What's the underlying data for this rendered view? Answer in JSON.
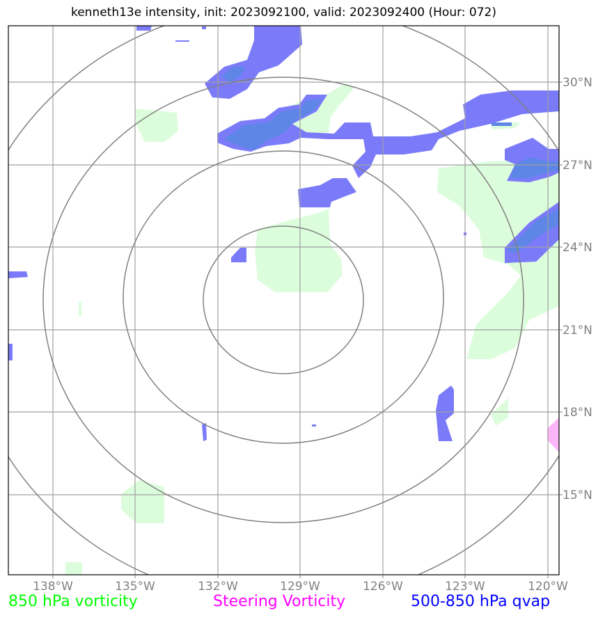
{
  "title": "kenneth13e intensity, init: 2023092100, valid: 2023092400 (Hour: 072)",
  "map": {
    "lon_range": [
      -139.6,
      -119.6
    ],
    "lat_range": [
      12.5,
      32.5
    ],
    "lon_ticks": [
      "138°W",
      "135°W",
      "132°W",
      "129°W",
      "126°W",
      "123°W",
      "120°W"
    ],
    "lat_ticks": [
      "30°N",
      "27°N",
      "24°N",
      "21°N",
      "18°N",
      "15°N"
    ],
    "storm_center": {
      "lon": -129.6,
      "lat": 22.2
    },
    "range_ring_count": 4,
    "colors": {
      "vorticity_fill": "#dcfddc",
      "qvap_fill": "#7b7bfa",
      "qvap_overlap": "#5d86e6",
      "steering_fill": "#fbb6f7",
      "grid": "#a0a0a0",
      "rings": "#808080"
    }
  },
  "legend": {
    "vorticity": {
      "label": "850 hPa vorticity",
      "color": "#00ff00"
    },
    "steering": {
      "label": "Steering Vorticity",
      "color": "#ff00ff"
    },
    "qvap": {
      "label": "500-850 hPa qvap",
      "color": "#0000ff"
    }
  }
}
